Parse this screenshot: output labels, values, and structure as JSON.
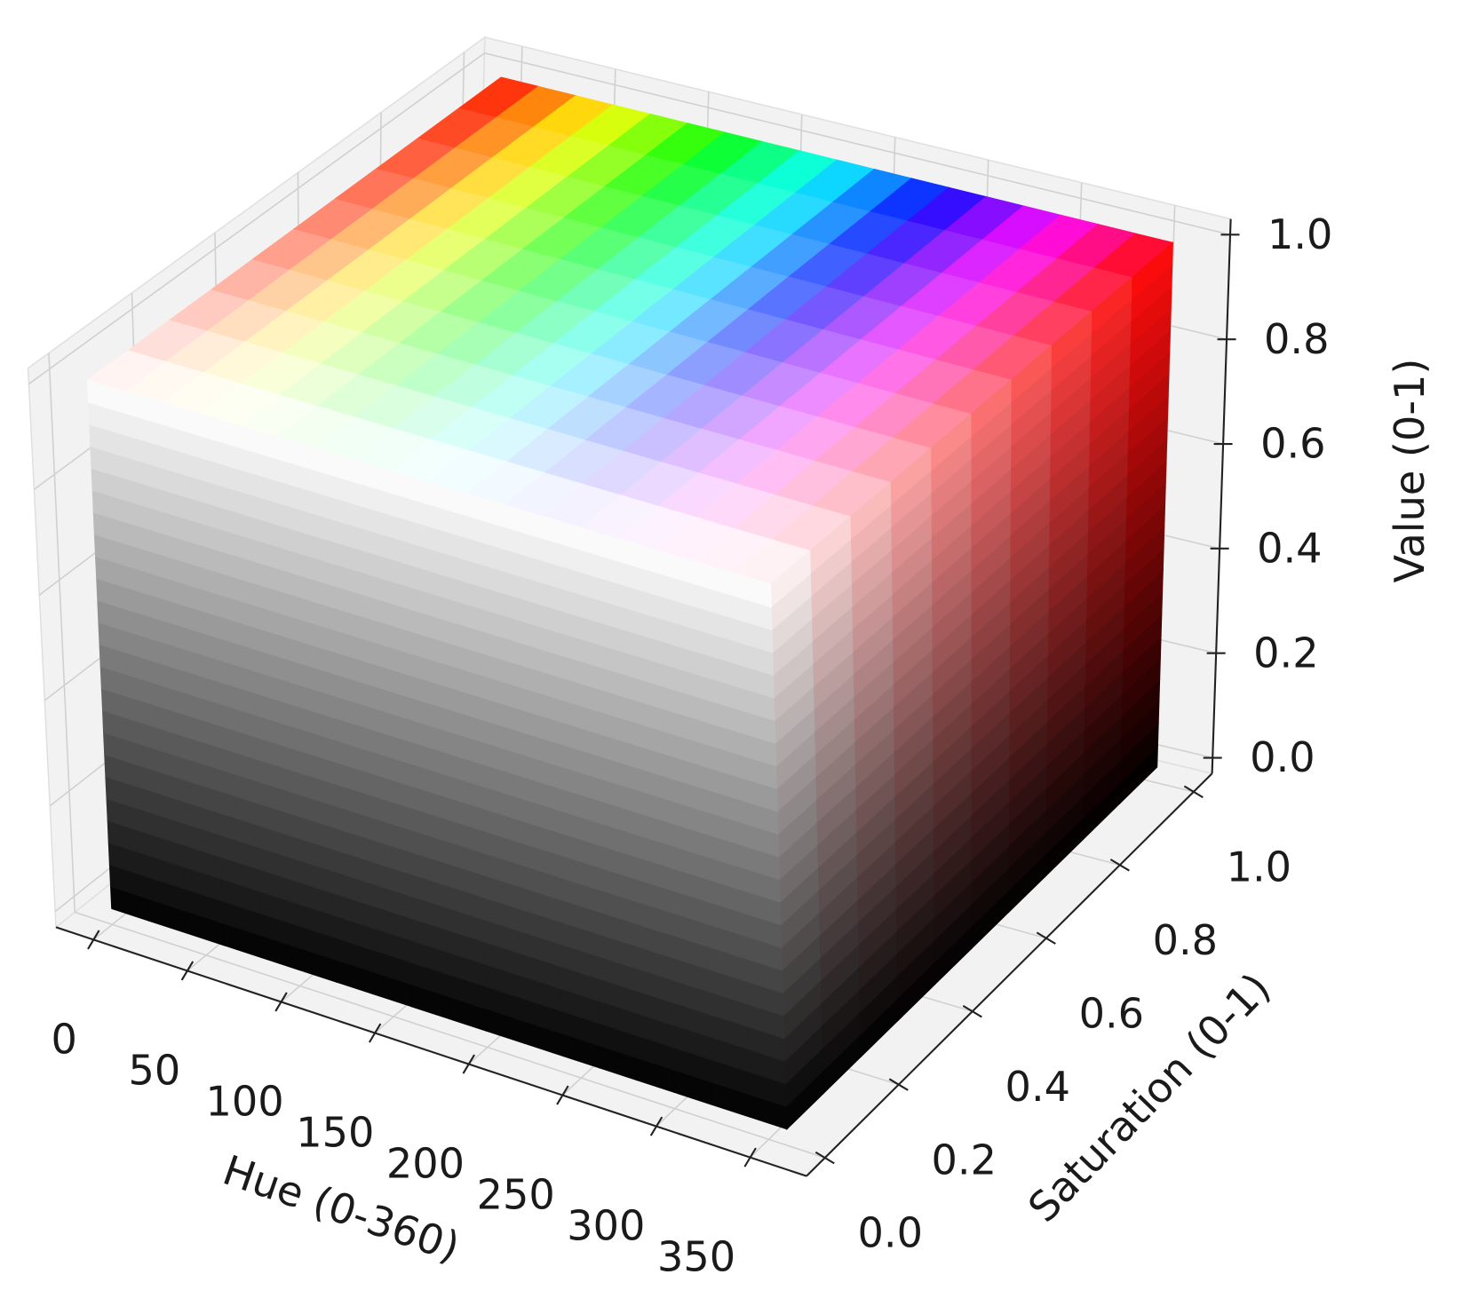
{
  "chart_data": {
    "type": "hsv_cube",
    "x_label": "Hue (0-360)",
    "y_label": "Saturation (0-1)",
    "z_label": "Value (0-1)",
    "xlim": [
      -20,
      380
    ],
    "ylim": [
      -0.05,
      1.05
    ],
    "zlim": [
      -0.03,
      1.03
    ],
    "xticks": [
      0,
      50,
      100,
      150,
      200,
      250,
      300,
      350
    ],
    "yticks": [
      {
        "value": 0,
        "label": "0.0"
      },
      {
        "value": 0.2,
        "label": "0.2"
      },
      {
        "value": 0.4,
        "label": "0.4"
      },
      {
        "value": 0.6,
        "label": "0.6"
      },
      {
        "value": 0.8,
        "label": "0.8"
      },
      {
        "value": 1,
        "label": "1.0"
      }
    ],
    "zticks": [
      {
        "value": 0,
        "label": "0.0"
      },
      {
        "value": 0.2,
        "label": "0.2"
      },
      {
        "value": 0.4,
        "label": "0.4"
      },
      {
        "value": 0.6,
        "label": "0.6"
      },
      {
        "value": 0.8,
        "label": "0.8"
      },
      {
        "value": 1,
        "label": "1.0"
      }
    ],
    "hue_range": [
      0,
      360
    ],
    "saturation_range": [
      0,
      1
    ],
    "value_range": [
      0,
      1
    ],
    "grid": true
  }
}
